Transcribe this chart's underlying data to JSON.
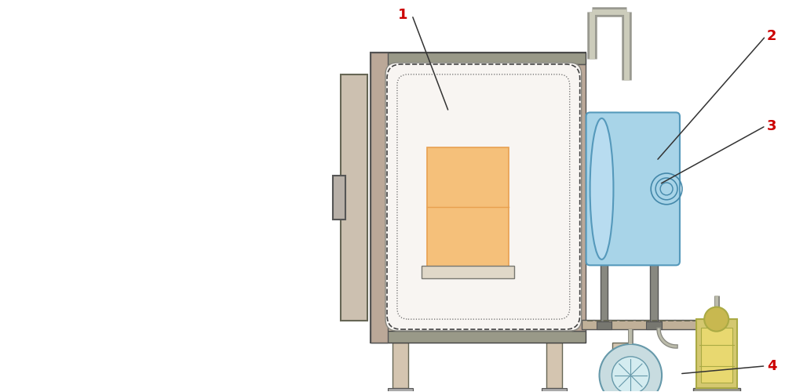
{
  "bg_color": "#ffffff",
  "furnace_body_color": "#d4c5b0",
  "furnace_body_dark": "#b8a88a",
  "furnace_body_outline": "#666666",
  "inner_white_color": "#f8f5f2",
  "heating_color": "#f5c07a",
  "heating_border": "#e8a050",
  "blue_color": "#a8d4e8",
  "blue_border": "#5599bb",
  "rotary_color": "#c8dce0",
  "rotary_border": "#6699aa",
  "yellow_color": "#d4c870",
  "yellow_border": "#aaaa44",
  "pipe_color": "#888888",
  "label_color": "#cc0000",
  "line_color": "#333333",
  "label_fontsize": 13
}
